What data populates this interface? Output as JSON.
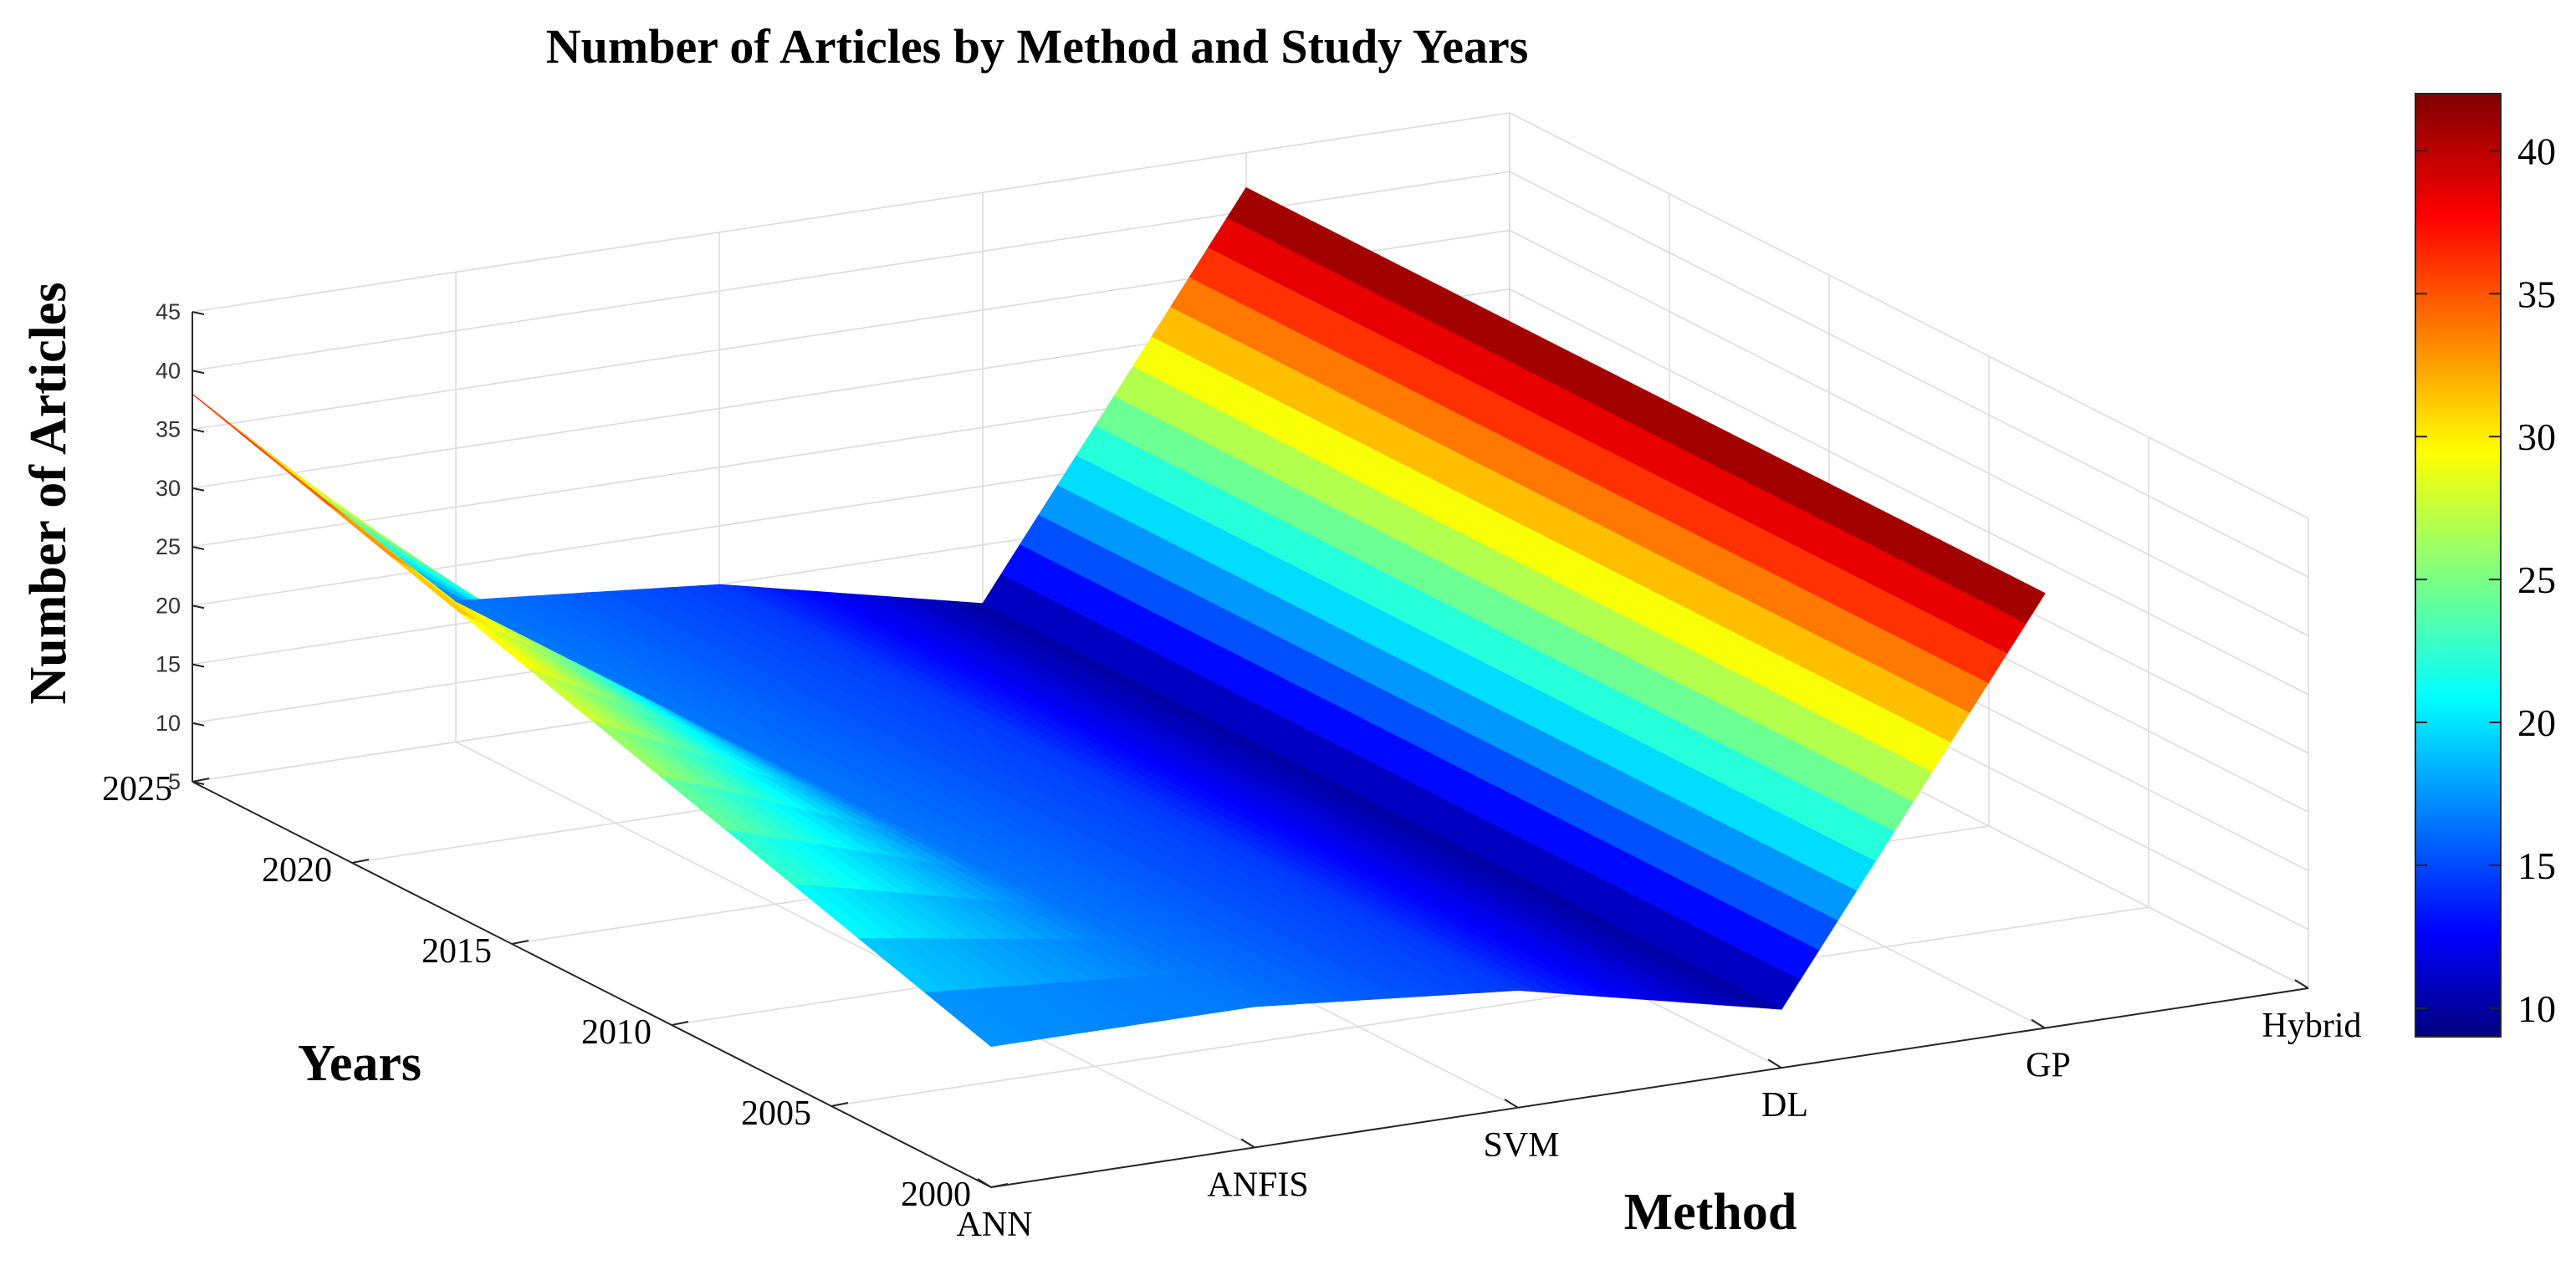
{
  "chart_data": {
    "type": "surface",
    "title": "Number of Articles by Method and Study Years",
    "xlabel": "Method",
    "ylabel": "Years",
    "zlabel": "Number of Articles",
    "categories": [
      "ANN",
      "ANFIS",
      "SVM",
      "DL",
      "GP",
      "Hybrid"
    ],
    "year_ticks": [
      2000,
      2005,
      2010,
      2015,
      2020,
      2025
    ],
    "ylim": [
      2000,
      2025
    ],
    "zlim": [
      5,
      45
    ],
    "z_ticks": [
      5,
      10,
      15,
      20,
      25,
      30,
      35,
      40,
      45
    ],
    "surface_years": [
      2000,
      2025
    ],
    "surface_values": [
      {
        "method": "ANN",
        "year_2000": 17,
        "year_2025": 38
      },
      {
        "method": "ANFIS",
        "year_2000": 17,
        "year_2025": 17
      },
      {
        "method": "SVM",
        "year_2000": 15,
        "year_2025": 15
      },
      {
        "method": "DL",
        "year_2000": 10,
        "year_2025": 10
      },
      {
        "method": "GP",
        "year_2000": 42,
        "year_2025": 42
      }
    ],
    "colorbar": {
      "colormap": "jet",
      "range": [
        9,
        42
      ],
      "ticks": [
        10,
        15,
        20,
        25,
        30,
        35,
        40
      ]
    },
    "grid": true
  }
}
